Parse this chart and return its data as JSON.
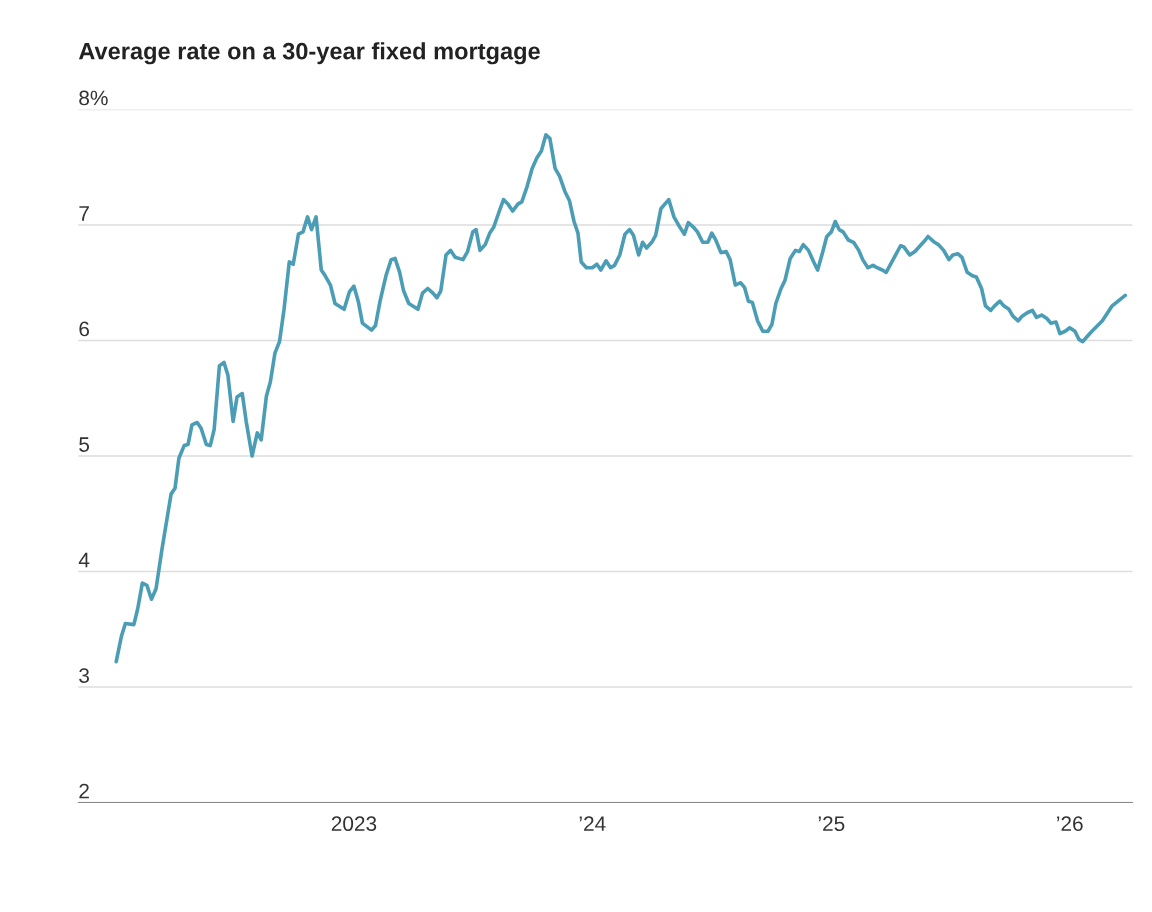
{
  "chart_data": {
    "type": "line",
    "title": "Average rate on a 30-year fixed mortgage",
    "x": [
      "2022-01-02",
      "2022-01-10",
      "2022-01-16",
      "2022-01-29",
      "2022-02-04",
      "2022-02-11",
      "2022-02-18",
      "2022-02-25",
      "2022-03-04",
      "2022-03-13",
      "2022-03-27",
      "2022-04-02",
      "2022-04-08",
      "2022-04-16",
      "2022-04-22",
      "2022-04-28",
      "2022-05-06",
      "2022-05-12",
      "2022-05-20",
      "2022-05-26",
      "2022-06-01",
      "2022-06-09",
      "2022-06-16",
      "2022-06-22",
      "2022-06-30",
      "2022-07-06",
      "2022-07-14",
      "2022-07-20",
      "2022-07-29",
      "2022-08-06",
      "2022-08-12",
      "2022-08-20",
      "2022-08-26",
      "2022-09-02",
      "2022-09-09",
      "2022-09-16",
      "2022-09-24",
      "2022-09-30",
      "2022-10-08",
      "2022-10-15",
      "2022-10-22",
      "2022-10-28",
      "2022-11-04",
      "2022-11-12",
      "2022-11-18",
      "2022-11-26",
      "2022-12-03",
      "2022-12-17",
      "2022-12-25",
      "2023-01-01",
      "2023-01-08",
      "2023-01-14",
      "2023-01-28",
      "2023-02-03",
      "2023-02-10",
      "2023-02-19",
      "2023-02-27",
      "2023-03-05",
      "2023-03-12",
      "2023-03-18",
      "2023-03-26",
      "2023-04-09",
      "2023-04-16",
      "2023-04-24",
      "2023-05-02",
      "2023-05-08",
      "2023-05-14",
      "2023-05-22",
      "2023-05-29",
      "2023-06-05",
      "2023-06-17",
      "2023-06-24",
      "2023-07-02",
      "2023-07-07",
      "2023-07-13",
      "2023-07-21",
      "2023-07-28",
      "2023-08-03",
      "2023-08-11",
      "2023-08-18",
      "2023-08-25",
      "2023-09-01",
      "2023-09-09",
      "2023-09-15",
      "2023-09-23",
      "2023-10-01",
      "2023-10-08",
      "2023-10-15",
      "2023-10-22",
      "2023-10-28",
      "2023-11-05",
      "2023-11-12",
      "2023-11-20",
      "2023-11-27",
      "2023-12-04",
      "2023-12-10",
      "2023-12-15",
      "2023-12-23",
      "2024-01-01",
      "2024-01-08",
      "2024-01-14",
      "2024-01-22",
      "2024-01-29",
      "2024-02-04",
      "2024-02-12",
      "2024-02-20",
      "2024-02-27",
      "2024-03-04",
      "2024-03-12",
      "2024-03-18",
      "2024-03-24",
      "2024-04-01",
      "2024-04-07",
      "2024-04-15",
      "2024-04-21",
      "2024-04-27",
      "2024-05-05",
      "2024-05-13",
      "2024-05-21",
      "2024-05-27",
      "2024-06-04",
      "2024-06-10",
      "2024-06-18",
      "2024-06-26",
      "2024-07-02",
      "2024-07-08",
      "2024-07-16",
      "2024-07-24",
      "2024-07-30",
      "2024-08-07",
      "2024-08-15",
      "2024-08-21",
      "2024-08-27",
      "2024-09-02",
      "2024-09-10",
      "2024-09-18",
      "2024-09-26",
      "2024-10-02",
      "2024-10-08",
      "2024-10-16",
      "2024-10-22",
      "2024-10-30",
      "2024-11-07",
      "2024-11-13",
      "2024-11-19",
      "2024-11-27",
      "2024-12-05",
      "2024-12-11",
      "2024-12-19",
      "2024-12-25",
      "2025-01-01",
      "2025-01-07",
      "2025-01-13",
      "2025-01-19",
      "2025-01-27",
      "2025-02-04",
      "2025-02-12",
      "2025-02-18",
      "2025-02-26",
      "2025-03-06",
      "2025-03-12",
      "2025-03-20",
      "2025-03-26",
      "2025-04-17",
      "2025-04-22",
      "2025-05-01",
      "2025-05-09",
      "2025-05-17",
      "2025-05-25",
      "2025-05-29",
      "2025-06-08",
      "2025-06-14",
      "2025-06-22",
      "2025-06-30",
      "2025-07-06",
      "2025-07-14",
      "2025-07-20",
      "2025-07-28",
      "2025-08-05",
      "2025-08-11",
      "2025-08-19",
      "2025-08-25",
      "2025-09-02",
      "2025-09-08",
      "2025-09-16",
      "2025-09-22",
      "2025-09-30",
      "2025-10-06",
      "2025-10-14",
      "2025-10-20",
      "2025-10-28",
      "2025-11-05",
      "2025-11-11",
      "2025-11-19",
      "2025-11-27",
      "2025-12-03",
      "2025-12-11",
      "2025-12-17",
      "2025-12-25",
      "2026-01-01",
      "2026-01-09",
      "2026-01-15",
      "2026-01-21",
      "2026-01-27",
      "2026-02-04",
      "2026-02-20",
      "2026-03-07",
      "2026-03-27"
    ],
    "series": [
      {
        "color": "#4a9db5",
        "values": [
          3.22,
          3.44,
          3.55,
          3.54,
          3.68,
          3.9,
          3.88,
          3.76,
          3.85,
          4.19,
          4.67,
          4.72,
          4.98,
          5.09,
          5.1,
          5.27,
          5.29,
          5.24,
          5.1,
          5.09,
          5.23,
          5.78,
          5.81,
          5.7,
          5.3,
          5.51,
          5.54,
          5.3,
          5.0,
          5.2,
          5.14,
          5.52,
          5.64,
          5.89,
          5.99,
          6.27,
          6.68,
          6.66,
          6.92,
          6.94,
          7.07,
          6.96,
          7.07,
          6.61,
          6.56,
          6.48,
          6.32,
          6.27,
          6.42,
          6.47,
          6.33,
          6.15,
          6.09,
          6.13,
          6.34,
          6.56,
          6.7,
          6.71,
          6.59,
          6.43,
          6.32,
          6.27,
          6.41,
          6.45,
          6.41,
          6.37,
          6.43,
          6.74,
          6.78,
          6.72,
          6.7,
          6.77,
          6.94,
          6.96,
          6.78,
          6.83,
          6.93,
          6.98,
          7.11,
          7.22,
          7.18,
          7.12,
          7.18,
          7.2,
          7.33,
          7.49,
          7.58,
          7.64,
          7.78,
          7.75,
          7.49,
          7.42,
          7.29,
          7.21,
          7.03,
          6.93,
          6.68,
          6.63,
          6.63,
          6.66,
          6.61,
          6.69,
          6.63,
          6.65,
          6.74,
          6.92,
          6.96,
          6.91,
          6.74,
          6.85,
          6.8,
          6.85,
          6.91,
          7.14,
          7.18,
          7.22,
          7.07,
          6.99,
          6.92,
          7.02,
          6.98,
          6.94,
          6.85,
          6.85,
          6.93,
          6.87,
          6.76,
          6.77,
          6.7,
          6.48,
          6.5,
          6.46,
          6.34,
          6.33,
          6.17,
          6.08,
          6.08,
          6.14,
          6.32,
          6.45,
          6.52,
          6.71,
          6.78,
          6.77,
          6.83,
          6.78,
          6.68,
          6.61,
          6.77,
          6.9,
          6.94,
          7.03,
          6.96,
          6.94,
          6.87,
          6.85,
          6.78,
          6.7,
          6.63,
          6.65,
          6.63,
          6.61,
          6.59,
          6.82,
          6.81,
          6.74,
          6.77,
          6.82,
          6.87,
          6.9,
          6.85,
          6.83,
          6.78,
          6.7,
          6.74,
          6.75,
          6.72,
          6.59,
          6.56,
          6.55,
          6.45,
          6.3,
          6.26,
          6.3,
          6.34,
          6.3,
          6.27,
          6.21,
          6.17,
          6.21,
          6.24,
          6.26,
          6.2,
          6.22,
          6.19,
          6.15,
          6.16,
          6.06,
          6.08,
          6.11,
          6.08,
          6.01,
          5.99,
          6.03,
          6.08,
          6.17,
          6.3,
          6.39
        ]
      }
    ],
    "xlim": [
      "2021-11-05",
      "2026-04-07"
    ],
    "xticks": [
      {
        "value": "2023-01-01",
        "label": "2023"
      },
      {
        "value": "2024-01-01",
        "label": "’24"
      },
      {
        "value": "2025-01-01",
        "label": "’25"
      },
      {
        "value": "2026-01-01",
        "label": "’26"
      }
    ],
    "ylim": [
      2,
      8
    ],
    "yticks": [
      2,
      3,
      4,
      5,
      6,
      7,
      {
        "value": 8,
        "label": "8%"
      }
    ],
    "grid": "y",
    "legend": false,
    "marker": "none",
    "line_style": "solid"
  }
}
